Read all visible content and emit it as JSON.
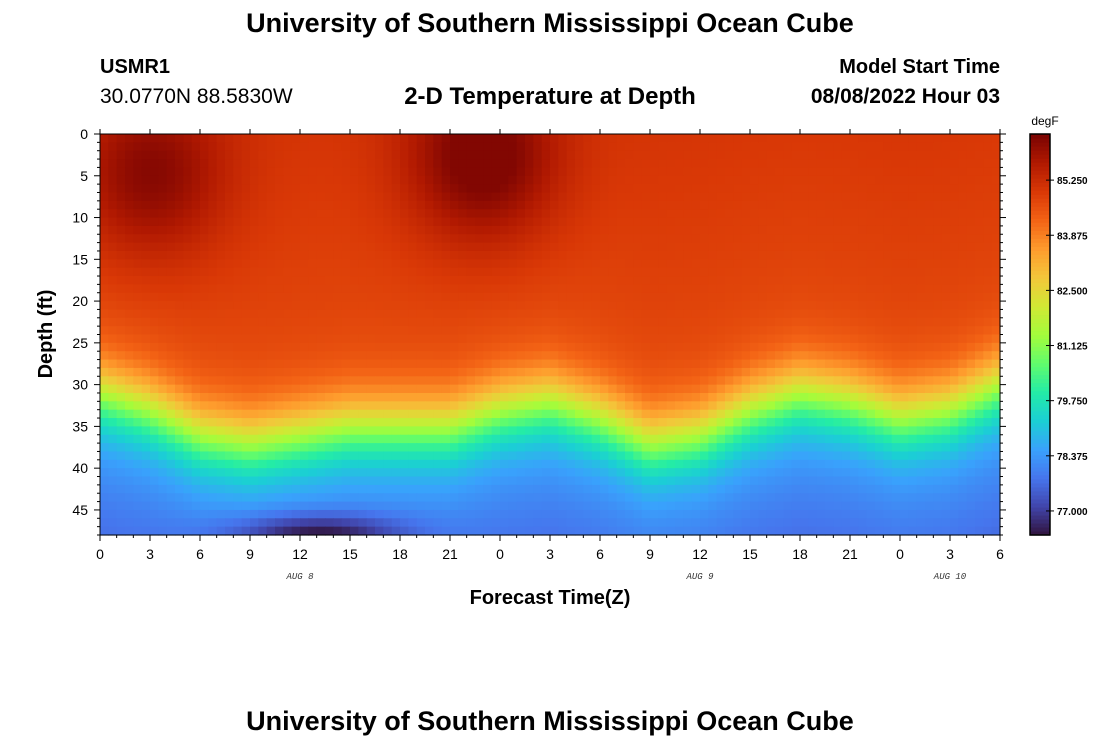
{
  "header": {
    "title": "University of Southern Mississippi Ocean Cube",
    "station_id": "USMR1",
    "coordinates": "30.0770N  88.5830W",
    "subtitle": "2-D Temperature at Depth",
    "model_label": "Model Start Time",
    "model_value": "08/08/2022 Hour 03"
  },
  "footer": {
    "title": "University of Southern Mississippi Ocean Cube"
  },
  "chart_data": {
    "type": "heatmap",
    "title": "2-D Temperature at Depth",
    "xlabel": "Forecast Time(Z)",
    "ylabel": "Depth (ft)",
    "units": "degF",
    "xlim": [
      0,
      54
    ],
    "ylim": [
      0,
      48
    ],
    "y_inverted": true,
    "x_tick_values": [
      0,
      3,
      6,
      9,
      12,
      15,
      18,
      21,
      24,
      27,
      30,
      33,
      36,
      39,
      42,
      45,
      48,
      51,
      54
    ],
    "x_tick_labels": [
      "0",
      "3",
      "6",
      "9",
      "12",
      "15",
      "18",
      "21",
      "0",
      "3",
      "6",
      "9",
      "12",
      "15",
      "18",
      "21",
      "0",
      "3",
      "6"
    ],
    "y_ticks": [
      0,
      5,
      10,
      15,
      20,
      25,
      30,
      35,
      40,
      45
    ],
    "date_labels": [
      {
        "label": "AUG 8",
        "x": 12
      },
      {
        "label": "AUG 9",
        "x": 36
      },
      {
        "label": "AUG 10",
        "x": 51
      }
    ],
    "colorbar": {
      "min": 76.4,
      "max": 86.4,
      "ticks": [
        77.0,
        78.375,
        79.75,
        81.125,
        82.5,
        83.875,
        85.25
      ],
      "tick_labels": [
        "77.000",
        "78.375",
        "79.750",
        "81.125",
        "82.500",
        "83.875",
        "85.250"
      ],
      "colors": [
        "#30123b",
        "#4145ab",
        "#4675ed",
        "#39a2fc",
        "#1bcfd4",
        "#24eca6",
        "#61fc6c",
        "#a4fc3b",
        "#d1e834",
        "#f3c63a",
        "#fe9b2d",
        "#f36315",
        "#d93806",
        "#b11901",
        "#7a0402"
      ]
    },
    "thermocline_depth_ft": [
      {
        "x": 0,
        "depth": 31
      },
      {
        "x": 3,
        "depth": 33
      },
      {
        "x": 6,
        "depth": 36
      },
      {
        "x": 9,
        "depth": 37
      },
      {
        "x": 12,
        "depth": 36
      },
      {
        "x": 15,
        "depth": 35
      },
      {
        "x": 18,
        "depth": 35
      },
      {
        "x": 21,
        "depth": 35
      },
      {
        "x": 24,
        "depth": 33
      },
      {
        "x": 27,
        "depth": 32
      },
      {
        "x": 30,
        "depth": 34
      },
      {
        "x": 33,
        "depth": 37
      },
      {
        "x": 36,
        "depth": 36
      },
      {
        "x": 39,
        "depth": 33
      },
      {
        "x": 42,
        "depth": 31
      },
      {
        "x": 45,
        "depth": 32
      },
      {
        "x": 48,
        "depth": 34
      },
      {
        "x": 51,
        "depth": 33
      },
      {
        "x": 54,
        "depth": 30
      }
    ],
    "surface_warm_cores": [
      {
        "x": 3,
        "depth": 5,
        "value": 86.0
      },
      {
        "x": 23,
        "depth": 3,
        "value": 86.3
      }
    ],
    "bottom_minimum": {
      "x": 13,
      "depth": 48,
      "value": 76.6
    }
  }
}
